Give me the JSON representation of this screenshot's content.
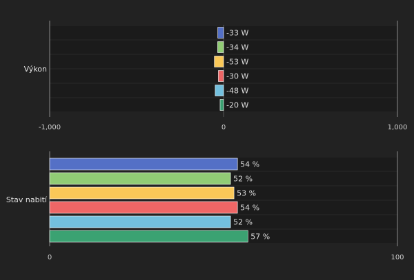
{
  "chart_data": [
    {
      "type": "bar",
      "orientation": "horizontal",
      "category_label": "Výkon",
      "xlim": [
        -1000,
        1000
      ],
      "ticks": [
        "-1,000",
        "0",
        "1,000"
      ],
      "unit": "W",
      "values": [
        -33,
        -34,
        -53,
        -30,
        -48,
        -20
      ],
      "value_labels": [
        "-33 W",
        "-34 W",
        "-53 W",
        "-30 W",
        "-48 W",
        "-20 W"
      ],
      "colors": [
        "#5470c6",
        "#91cc75",
        "#fac858",
        "#ee6666",
        "#73c0de",
        "#3ba272"
      ]
    },
    {
      "type": "bar",
      "orientation": "horizontal",
      "category_label": "Stav nabití",
      "xlim": [
        0,
        100
      ],
      "ticks": [
        "0",
        "100"
      ],
      "unit": "%",
      "values": [
        54,
        52,
        53,
        54,
        52,
        57
      ],
      "value_labels": [
        "54 %",
        "52 %",
        "53 %",
        "54 %",
        "52 %",
        "57 %"
      ],
      "colors": [
        "#5470c6",
        "#91cc75",
        "#fac858",
        "#ee6666",
        "#73c0de",
        "#3ba272"
      ]
    }
  ]
}
